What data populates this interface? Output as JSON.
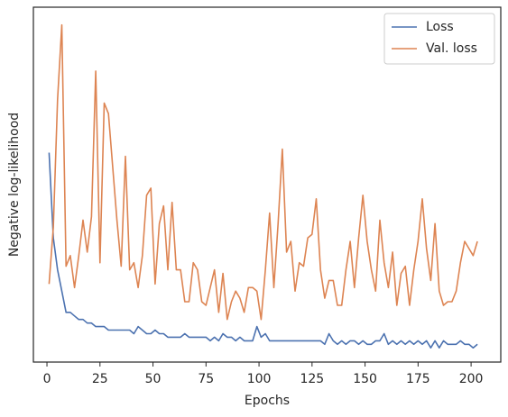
{
  "chart_data": {
    "type": "line",
    "xlabel": "Epochs",
    "ylabel": "Negative log-likelihood",
    "x": [
      1,
      3,
      5,
      7,
      9,
      11,
      13,
      15,
      17,
      19,
      21,
      23,
      25,
      27,
      29,
      31,
      33,
      35,
      37,
      39,
      41,
      43,
      45,
      47,
      49,
      51,
      53,
      55,
      57,
      59,
      61,
      63,
      65,
      67,
      69,
      71,
      73,
      75,
      77,
      79,
      81,
      83,
      85,
      87,
      89,
      91,
      93,
      95,
      97,
      99,
      101,
      103,
      105,
      107,
      109,
      111,
      113,
      115,
      117,
      119,
      121,
      123,
      125,
      127,
      129,
      131,
      133,
      135,
      137,
      139,
      141,
      143,
      145,
      147,
      149,
      151,
      153,
      155,
      157,
      159,
      161,
      163,
      165,
      167,
      169,
      171,
      173,
      175,
      177,
      179,
      181,
      183,
      185,
      187,
      189,
      191,
      193,
      195,
      197,
      199,
      201,
      203
    ],
    "series": [
      {
        "name": "Loss",
        "color": "#4c72b0",
        "values": [
          59,
          35,
          26,
          20,
          14,
          14,
          13,
          12,
          12,
          11,
          11,
          10,
          10,
          10,
          9,
          9,
          9,
          9,
          9,
          9,
          8,
          10,
          9,
          8,
          8,
          9,
          8,
          8,
          7,
          7,
          7,
          7,
          8,
          7,
          7,
          7,
          7,
          7,
          6,
          7,
          6,
          8,
          7,
          7,
          6,
          7,
          6,
          6,
          6,
          10,
          7,
          8,
          6,
          6,
          6,
          6,
          6,
          6,
          6,
          6,
          6,
          6,
          6,
          6,
          6,
          5,
          8,
          6,
          5,
          6,
          5,
          6,
          6,
          5,
          6,
          5,
          5,
          6,
          6,
          8,
          5,
          6,
          5,
          6,
          5,
          6,
          5,
          6,
          5,
          6,
          4,
          6,
          4,
          6,
          5,
          5,
          5,
          6,
          5,
          5,
          4,
          5
        ]
      },
      {
        "name": "Val. loss",
        "color": "#dd8452",
        "values": [
          22,
          38,
          74,
          95,
          27,
          30,
          21,
          30,
          40,
          31,
          41,
          82,
          28,
          73,
          70,
          55,
          40,
          27,
          58,
          26,
          28,
          21,
          30,
          47,
          49,
          22,
          39,
          44,
          26,
          45,
          26,
          26,
          17,
          17,
          28,
          26,
          17,
          16,
          21,
          26,
          14,
          25,
          12,
          17,
          20,
          18,
          14,
          21,
          21,
          20,
          12,
          26,
          42,
          21,
          39,
          60,
          31,
          34,
          20,
          28,
          27,
          35,
          36,
          46,
          26,
          18,
          23,
          23,
          16,
          16,
          26,
          34,
          21,
          35,
          47,
          34,
          26,
          20,
          40,
          28,
          21,
          31,
          16,
          25,
          27,
          16,
          26,
          34,
          46,
          32,
          23,
          39,
          20,
          16,
          17,
          17,
          20,
          28,
          34,
          32,
          30,
          34
        ]
      }
    ],
    "xlim": [
      -6.4,
      214
    ],
    "ylim": [
      0,
      100
    ],
    "xticks": [
      0,
      25,
      50,
      75,
      100,
      125,
      150,
      175,
      200
    ],
    "legend": "upper right",
    "grid": false
  }
}
